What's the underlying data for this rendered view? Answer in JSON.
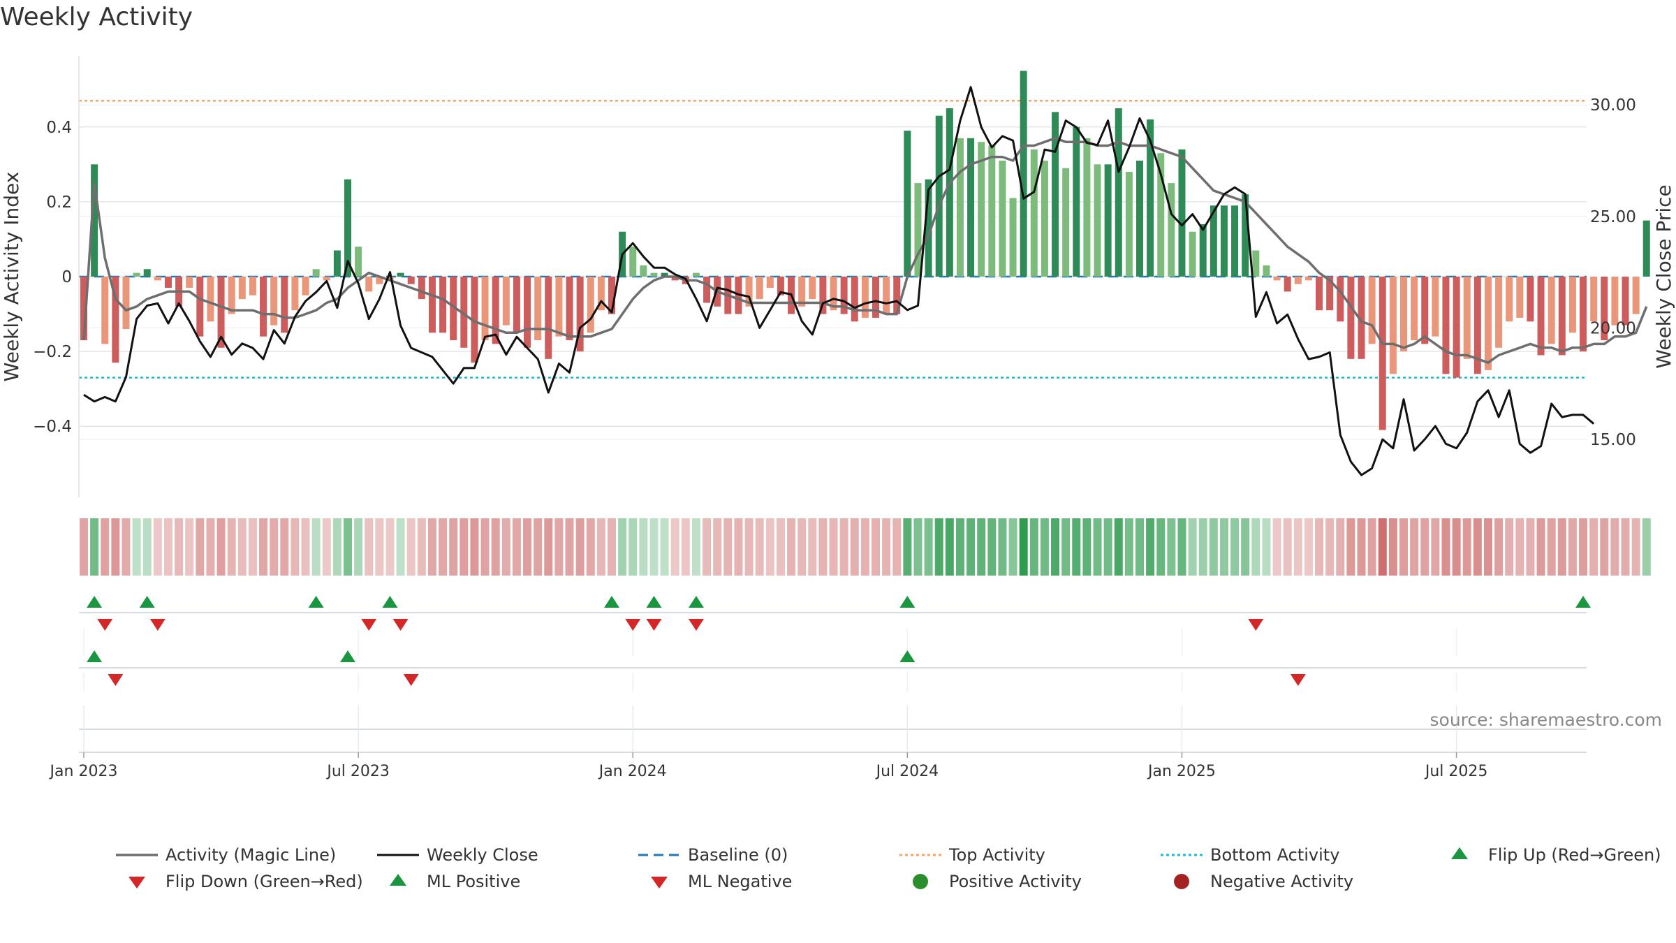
{
  "colors": {
    "strong_green": "#2e8b57",
    "light_green": "#7dbb7d",
    "strong_red": "#cd5c5c",
    "light_red": "#e9967a",
    "magic_line": "#6e6e6e",
    "close_line": "#111111",
    "baseline": "#1f77b4",
    "top_activity": "#f4a460",
    "bottom_activity": "#17becf",
    "marker_green": "#1a9641",
    "marker_red": "#d62728"
  },
  "chart_data": {
    "type": "bar",
    "title": "Weekly Activity",
    "xlabel": "",
    "ylabel": "Weekly Activity Index",
    "y2label": "Close Price",
    "y2label_full": "Weekly Close Price",
    "ylim": [
      -0.59,
      0.59
    ],
    "y2lim": [
      12.4,
      32.2
    ],
    "y_ticks": [
      -0.4,
      -0.2,
      0,
      0.2,
      0.4
    ],
    "y_tick_labels": [
      "−0.4",
      "−0.2",
      "0",
      "0.2",
      "0.4"
    ],
    "y2_ticks": [
      15,
      20,
      25,
      30
    ],
    "y2_tick_labels": [
      "15.00",
      "20.00",
      "25.00",
      "30.00"
    ],
    "top_activity_level": 0.47,
    "bottom_activity_level": -0.27,
    "baseline_level": 0,
    "x_ticks": [
      {
        "week": 1,
        "label": "Jan 2023"
      },
      {
        "week": 27,
        "label": "Jul 2023"
      },
      {
        "week": 53,
        "label": "Jan 2024"
      },
      {
        "week": 79,
        "label": "Jul 2024"
      },
      {
        "week": 105,
        "label": "Jan 2025"
      },
      {
        "week": 131,
        "label": "Jul 2025"
      }
    ],
    "source": "source: sharemaestro.com",
    "activity": [
      -0.17,
      0.3,
      -0.18,
      -0.23,
      -0.14,
      0.01,
      0.02,
      -0.01,
      -0.03,
      -0.08,
      -0.03,
      -0.16,
      -0.12,
      -0.19,
      -0.1,
      -0.06,
      -0.05,
      -0.16,
      -0.13,
      -0.15,
      -0.09,
      -0.05,
      0.02,
      -0.01,
      0.07,
      0.26,
      0.08,
      -0.04,
      -0.02,
      -0.01,
      0.01,
      -0.02,
      -0.06,
      -0.15,
      -0.15,
      -0.17,
      -0.19,
      -0.23,
      -0.17,
      -0.18,
      -0.13,
      -0.15,
      -0.19,
      -0.17,
      -0.22,
      -0.16,
      -0.17,
      -0.2,
      -0.15,
      -0.09,
      -0.1,
      0.12,
      0.08,
      0.03,
      0.01,
      0.01,
      -0.01,
      -0.02,
      0.01,
      -0.07,
      -0.08,
      -0.1,
      -0.1,
      -0.08,
      -0.06,
      -0.03,
      -0.05,
      -0.1,
      -0.08,
      -0.06,
      -0.1,
      -0.09,
      -0.1,
      -0.12,
      -0.11,
      -0.11,
      -0.1,
      -0.1,
      0.39,
      0.25,
      0.26,
      0.43,
      0.45,
      0.37,
      0.37,
      0.36,
      0.35,
      0.31,
      0.21,
      0.55,
      0.34,
      0.31,
      0.44,
      0.29,
      0.4,
      0.37,
      0.3,
      0.3,
      0.45,
      0.28,
      0.31,
      0.42,
      0.33,
      0.25,
      0.34,
      0.12,
      0.14,
      0.19,
      0.19,
      0.19,
      0.22,
      0.07,
      0.03,
      -0.01,
      -0.04,
      -0.02,
      -0.01,
      -0.09,
      -0.09,
      -0.12,
      -0.22,
      -0.22,
      -0.18,
      -0.41,
      -0.26,
      -0.2,
      -0.17,
      -0.18,
      -0.16,
      -0.26,
      -0.27,
      -0.22,
      -0.26,
      -0.25,
      -0.19,
      -0.12,
      -0.11,
      -0.12,
      -0.21,
      -0.18,
      -0.21,
      -0.15,
      -0.2,
      -0.12,
      -0.17,
      -0.13,
      -0.13,
      -0.1,
      0.15
    ],
    "magic_line": [
      -0.17,
      0.25,
      0.05,
      -0.06,
      -0.09,
      -0.08,
      -0.06,
      -0.05,
      -0.04,
      -0.04,
      -0.04,
      -0.06,
      -0.07,
      -0.08,
      -0.09,
      -0.09,
      -0.09,
      -0.1,
      -0.1,
      -0.11,
      -0.11,
      -0.1,
      -0.09,
      -0.07,
      -0.06,
      -0.03,
      -0.01,
      0.01,
      0.0,
      -0.01,
      -0.02,
      -0.03,
      -0.04,
      -0.05,
      -0.06,
      -0.08,
      -0.1,
      -0.12,
      -0.13,
      -0.14,
      -0.15,
      -0.15,
      -0.14,
      -0.14,
      -0.14,
      -0.15,
      -0.16,
      -0.16,
      -0.16,
      -0.15,
      -0.14,
      -0.1,
      -0.06,
      -0.03,
      -0.01,
      0.0,
      0.0,
      -0.01,
      -0.01,
      -0.02,
      -0.04,
      -0.05,
      -0.06,
      -0.07,
      -0.07,
      -0.07,
      -0.07,
      -0.07,
      -0.07,
      -0.07,
      -0.07,
      -0.08,
      -0.08,
      -0.09,
      -0.09,
      -0.09,
      -0.1,
      -0.1,
      0.0,
      0.06,
      0.11,
      0.19,
      0.25,
      0.28,
      0.3,
      0.31,
      0.32,
      0.32,
      0.31,
      0.35,
      0.35,
      0.36,
      0.37,
      0.36,
      0.36,
      0.36,
      0.35,
      0.35,
      0.36,
      0.35,
      0.35,
      0.35,
      0.34,
      0.33,
      0.32,
      0.29,
      0.26,
      0.23,
      0.22,
      0.21,
      0.2,
      0.17,
      0.14,
      0.11,
      0.08,
      0.06,
      0.04,
      0.01,
      -0.01,
      -0.04,
      -0.08,
      -0.12,
      -0.13,
      -0.18,
      -0.18,
      -0.19,
      -0.18,
      -0.16,
      -0.18,
      -0.2,
      -0.21,
      -0.21,
      -0.22,
      -0.23,
      -0.21,
      -0.2,
      -0.19,
      -0.18,
      -0.19,
      -0.19,
      -0.2,
      -0.19,
      -0.19,
      -0.18,
      -0.18,
      -0.16,
      -0.16,
      -0.15,
      -0.08
    ],
    "weekly_close": [
      17.0,
      16.7,
      16.9,
      16.7,
      17.8,
      20.4,
      21.0,
      21.1,
      20.2,
      21.1,
      20.3,
      19.4,
      18.7,
      19.6,
      18.8,
      19.3,
      19.1,
      18.6,
      19.9,
      19.3,
      20.5,
      21.2,
      21.6,
      22.1,
      20.9,
      23.0,
      22.0,
      20.4,
      21.3,
      22.5,
      20.1,
      19.1,
      18.9,
      18.7,
      18.1,
      17.5,
      18.2,
      18.2,
      19.6,
      19.7,
      18.8,
      19.6,
      19.1,
      18.6,
      17.1,
      18.4,
      18.0,
      20.0,
      20.4,
      21.2,
      20.7,
      23.3,
      23.8,
      23.2,
      22.7,
      22.7,
      22.4,
      22.2,
      21.3,
      20.3,
      21.8,
      21.7,
      21.5,
      21.4,
      20.0,
      20.8,
      21.6,
      21.5,
      20.3,
      19.7,
      21.1,
      21.3,
      21.2,
      20.9,
      21.1,
      21.2,
      21.1,
      21.2,
      20.8,
      21.0,
      26.2,
      26.8,
      27.1,
      29.3,
      30.8,
      29.0,
      28.1,
      28.6,
      28.4,
      25.8,
      26.1,
      28.0,
      27.9,
      29.3,
      29.0,
      28.3,
      28.2,
      29.3,
      27.0,
      28.1,
      29.4,
      28.4,
      26.9,
      25.1,
      24.6,
      25.1,
      24.4,
      25.2,
      26.0,
      26.3,
      26.0,
      20.5,
      21.6,
      20.2,
      20.6,
      19.5,
      18.6,
      18.7,
      18.9,
      15.2,
      14.0,
      13.4,
      13.7,
      15.0,
      14.6,
      16.8,
      14.5,
      15.0,
      15.6,
      14.8,
      14.6,
      15.3,
      16.7,
      17.2,
      16.0,
      17.2,
      14.8,
      14.4,
      14.7,
      16.6,
      16.0,
      16.1,
      16.1,
      15.7
    ],
    "flips": {
      "up_weeks": [
        2,
        7,
        23,
        30,
        51,
        55,
        59,
        79,
        143
      ],
      "down_weeks": [
        3,
        8,
        28,
        31,
        53,
        55,
        59,
        112
      ],
      "ml_positive_weeks": [
        2,
        26,
        79
      ],
      "ml_negative_weeks": [
        4,
        32,
        116
      ]
    },
    "legend": [
      {
        "label": "Activity (Magic Line)",
        "kind": "line-gray"
      },
      {
        "label": "Weekly Close",
        "kind": "line-black"
      },
      {
        "label": "Baseline (0)",
        "kind": "dash-blue"
      },
      {
        "label": "Top Activity",
        "kind": "dot-orange"
      },
      {
        "label": "Bottom Activity",
        "kind": "dot-cyan"
      },
      {
        "label": "Flip Up (Red→Green)",
        "kind": "tri-up-green"
      },
      {
        "label": "Flip Down (Green→Red)",
        "kind": "tri-down-red"
      },
      {
        "label": "ML Positive",
        "kind": "tri-up-green"
      },
      {
        "label": "ML Negative",
        "kind": "tri-down-red"
      },
      {
        "label": "Positive Activity",
        "kind": "circle-green"
      },
      {
        "label": "Negative Activity",
        "kind": "circle-red"
      }
    ]
  }
}
